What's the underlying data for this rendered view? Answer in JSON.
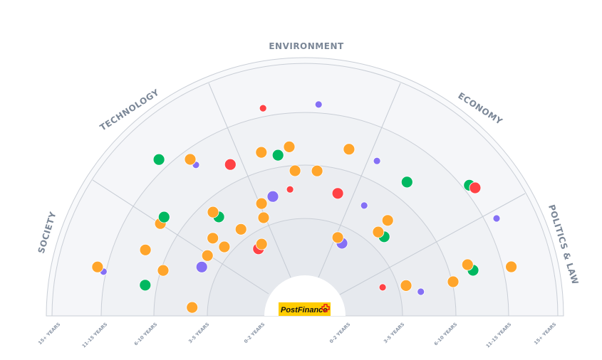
{
  "chart_data": {
    "type": "scatter",
    "subtype": "radar-semicircle",
    "logo_text": "PostFinance",
    "sectors": [
      "SOCIETY",
      "TECHNOLOGY",
      "ENVIRONMENT",
      "ECONOMY",
      "POLITICS & LAW"
    ],
    "horizons": [
      "0-2 YEARS",
      "3-5 YEARS",
      "6-10 YEARS",
      "11-15 YEARS",
      "15+ YEARS"
    ],
    "colors": {
      "orange": "#FFA52B",
      "green": "#00B860",
      "red": "#FF4245",
      "purple": "#8570F5"
    },
    "radial_unit": "horizon rings from center (0 = inner edge of 0-2 years, 4 = outer edge of 11-15 years)",
    "angle_unit": "degrees, 0 = right, 180 = left",
    "points": [
      {
        "sector": "ENVIRONMENT",
        "angle": 101.4,
        "r": 3.17,
        "color": "red",
        "size": "small"
      },
      {
        "sector": "ENVIRONMENT",
        "angle": 86.3,
        "r": 3.17,
        "color": "purple",
        "size": "small"
      },
      {
        "sector": "TECHNOLOGY",
        "angle": 133.0,
        "r": 3.21,
        "color": "green",
        "size": "large"
      },
      {
        "sector": "TECHNOLOGY",
        "angle": 125.8,
        "r": 2.67,
        "color": "purple",
        "size": "small"
      },
      {
        "sector": "TECHNOLOGY",
        "angle": 126.2,
        "r": 2.82,
        "color": "orange",
        "size": "large"
      },
      {
        "sector": "ENVIRONMENT",
        "angle": 116.2,
        "r": 2.34,
        "color": "red",
        "size": "large"
      },
      {
        "sector": "ENVIRONMENT",
        "angle": 104.9,
        "r": 2.35,
        "color": "orange",
        "size": "large"
      },
      {
        "sector": "ENVIRONMENT",
        "angle": 99.5,
        "r": 2.23,
        "color": "green",
        "size": "large"
      },
      {
        "sector": "ENVIRONMENT",
        "angle": 95.3,
        "r": 2.36,
        "color": "orange",
        "size": "large"
      },
      {
        "sector": "ENVIRONMENT",
        "angle": 75.2,
        "r": 2.41,
        "color": "orange",
        "size": "large"
      },
      {
        "sector": "ENVIRONMENT",
        "angle": 93.9,
        "r": 1.9,
        "color": "orange",
        "size": "large"
      },
      {
        "sector": "ENVIRONMENT",
        "angle": 85.2,
        "r": 1.9,
        "color": "orange",
        "size": "large"
      },
      {
        "sector": "ECONOMY",
        "angle": 65.1,
        "r": 2.38,
        "color": "purple",
        "size": "small"
      },
      {
        "sector": "ECONOMY",
        "angle": 52.7,
        "r": 2.33,
        "color": "green",
        "size": "large"
      },
      {
        "sector": "ECONOMY",
        "angle": 38.5,
        "r": 3.13,
        "color": "green",
        "size": "large"
      },
      {
        "sector": "ECONOMY",
        "angle": 37.0,
        "r": 3.19,
        "color": "red",
        "size": "large"
      },
      {
        "sector": "ENVIRONMENT",
        "angle": 96.7,
        "r": 1.56,
        "color": "red",
        "size": "small"
      },
      {
        "sector": "ENVIRONMENT",
        "angle": 75.0,
        "r": 1.55,
        "color": "red",
        "size": "large"
      },
      {
        "sector": "ENVIRONMENT",
        "angle": 105.0,
        "r": 1.49,
        "color": "purple",
        "size": "large"
      },
      {
        "sector": "ENVIRONMENT",
        "angle": 111.1,
        "r": 1.43,
        "color": "orange",
        "size": "large"
      },
      {
        "sector": "ECONOMY",
        "angle": 61.8,
        "r": 1.52,
        "color": "purple",
        "size": "small"
      },
      {
        "sector": "TECHNOLOGY",
        "angle": 112.8,
        "r": 1.17,
        "color": "orange",
        "size": "large"
      },
      {
        "sector": "TECHNOLOGY",
        "angle": 131.0,
        "r": 1.63,
        "color": "green",
        "size": "large"
      },
      {
        "sector": "TECHNOLOGY",
        "angle": 131.5,
        "r": 1.77,
        "color": "orange",
        "size": "large"
      },
      {
        "sector": "SOCIETY",
        "angle": 147.4,
        "r": 2.39,
        "color": "orange",
        "size": "large"
      },
      {
        "sector": "TECHNOLOGY",
        "angle": 144.9,
        "r": 2.4,
        "color": "green",
        "size": "large"
      },
      {
        "sector": "TECHNOLOGY",
        "angle": 126.4,
        "r": 1.19,
        "color": "orange",
        "size": "large"
      },
      {
        "sector": "TECHNOLOGY",
        "angle": 139.8,
        "r": 1.43,
        "color": "orange",
        "size": "large"
      },
      {
        "sector": "TECHNOLOGY",
        "angle": 139.4,
        "r": 1.16,
        "color": "orange",
        "size": "large"
      },
      {
        "sector": "ECONOMY",
        "angle": 49.1,
        "r": 1.54,
        "color": "orange",
        "size": "large"
      },
      {
        "sector": "ECONOMY",
        "angle": 45.0,
        "r": 1.27,
        "color": "green",
        "size": "large"
      },
      {
        "sector": "ECONOMY",
        "angle": 48.9,
        "r": 1.26,
        "color": "orange",
        "size": "large"
      },
      {
        "sector": "ECONOMY",
        "angle": 63.0,
        "r": 0.72,
        "color": "purple",
        "size": "large"
      },
      {
        "sector": "ECONOMY",
        "angle": 67.3,
        "r": 0.78,
        "color": "orange",
        "size": "large"
      },
      {
        "sector": "POLITICS & LAW",
        "angle": 27.0,
        "r": 3.23,
        "color": "purple",
        "size": "small"
      },
      {
        "sector": "TECHNOLOGY",
        "angle": 124.7,
        "r": 0.72,
        "color": "red",
        "size": "large"
      },
      {
        "sector": "TECHNOLOGY",
        "angle": 121.1,
        "r": 0.76,
        "color": "orange",
        "size": "large"
      },
      {
        "sector": "SOCIETY",
        "angle": 157.5,
        "r": 2.41,
        "color": "orange",
        "size": "large"
      },
      {
        "sector": "SOCIETY",
        "angle": 148.2,
        "r": 1.32,
        "color": "orange",
        "size": "large"
      },
      {
        "sector": "SOCIETY",
        "angle": 162.2,
        "r": 1.96,
        "color": "orange",
        "size": "large"
      },
      {
        "sector": "SOCIETY",
        "angle": 154.6,
        "r": 1.31,
        "color": "purple",
        "size": "large"
      },
      {
        "sector": "SOCIETY",
        "angle": 167.6,
        "r": 3.05,
        "color": "purple",
        "size": "small"
      },
      {
        "sector": "SOCIETY",
        "angle": 166.7,
        "r": 3.19,
        "color": "orange",
        "size": "large"
      },
      {
        "sector": "SOCIETY",
        "angle": 169.1,
        "r": 2.22,
        "color": "green",
        "size": "large"
      },
      {
        "sector": "SOCIETY",
        "angle": 175.7,
        "r": 1.29,
        "color": "orange",
        "size": "large"
      },
      {
        "sector": "POLITICS & LAW",
        "angle": 15.2,
        "r": 2.44,
        "color": "green",
        "size": "large"
      },
      {
        "sector": "POLITICS & LAW",
        "angle": 17.5,
        "r": 2.37,
        "color": "orange",
        "size": "large"
      },
      {
        "sector": "POLITICS & LAW",
        "angle": 13.4,
        "r": 3.17,
        "color": "orange",
        "size": "large"
      },
      {
        "sector": "POLITICS & LAW",
        "angle": 13.0,
        "r": 2.02,
        "color": "orange",
        "size": "large"
      },
      {
        "sector": "POLITICS & LAW",
        "angle": 16.7,
        "r": 1.15,
        "color": "orange",
        "size": "large"
      },
      {
        "sector": "POLITICS & LAW",
        "angle": 20.2,
        "r": 0.74,
        "color": "red",
        "size": "small"
      },
      {
        "sector": "POLITICS & LAW",
        "angle": 11.8,
        "r": 1.39,
        "color": "purple",
        "size": "small"
      }
    ]
  }
}
